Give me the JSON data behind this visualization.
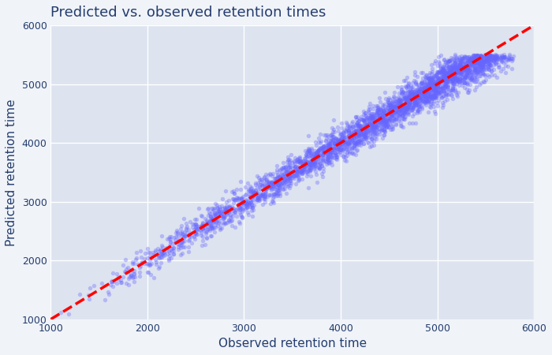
{
  "title": "Predicted vs. observed retention times",
  "xlabel": "Observed retention time",
  "ylabel": "Predicted retention time",
  "xlim": [
    1000,
    6000
  ],
  "ylim": [
    1000,
    6000
  ],
  "xticks": [
    1000,
    2000,
    3000,
    4000,
    5000,
    6000
  ],
  "yticks": [
    1000,
    2000,
    3000,
    4000,
    5000,
    6000
  ],
  "scatter_color": "#6666ff",
  "scatter_alpha": 0.35,
  "scatter_size": 15,
  "line_color": "red",
  "line_style": "--",
  "line_width": 2.5,
  "plot_bg_color": "#dde3ef",
  "outer_bg_color": "#f0f3f8",
  "grid_color": "#ffffff",
  "title_color": "#243d6e",
  "axis_label_color": "#243d6e",
  "tick_color": "#243d6e",
  "n_points": 4000,
  "seed": 42,
  "x_min": 1050,
  "x_max": 5800,
  "noise_std": 100,
  "title_fontsize": 13,
  "label_fontsize": 11,
  "tick_fontsize": 9
}
